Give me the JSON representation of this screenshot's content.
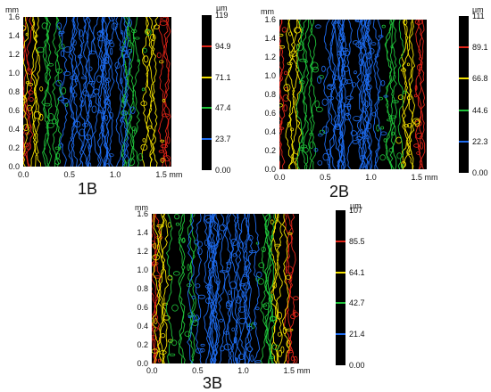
{
  "figure": {
    "panels": [
      {
        "caption": "1B",
        "y_unit": "mm",
        "y_ticks": [
          "1.6",
          "1.4",
          "1.2",
          "1.0",
          "0.8",
          "0.6",
          "0.4",
          "0.2",
          "0.0"
        ],
        "x_ticks": [
          "0.0",
          "0.5",
          "1.0",
          "1.5 mm"
        ],
        "colorbar_unit": "µm",
        "colorbar_ticks": [
          "119",
          "94.9",
          "71.1",
          "47.4",
          "23.7",
          "0.00"
        ]
      },
      {
        "caption": "2B",
        "y_unit": "mm",
        "y_ticks": [
          "1.6",
          "1.4",
          "1.2",
          "1.0",
          "0.8",
          "0.6",
          "0.4",
          "0.2",
          "0.0"
        ],
        "x_ticks": [
          "0.0",
          "0.5",
          "1.0",
          "1.5 mm"
        ],
        "colorbar_unit": "µm",
        "colorbar_ticks": [
          "111",
          "89.1",
          "66.8",
          "44.6",
          "22.3",
          "0.00"
        ]
      },
      {
        "caption": "3B",
        "y_unit": "mm",
        "y_ticks": [
          "1.6",
          "1.4",
          "1.2",
          "1.0",
          "0.8",
          "0.6",
          "0.4",
          "0.2",
          "0.0"
        ],
        "x_ticks": [
          "0.0",
          "0.5",
          "1.0",
          "1.5 mm"
        ],
        "colorbar_unit": "µm",
        "colorbar_ticks": [
          "107",
          "85.5",
          "64.1",
          "42.7",
          "21.4",
          "0.00"
        ]
      }
    ],
    "contour_colors": {
      "red": "#e02418",
      "yellow": "#f2e000",
      "green": "#1fc33a",
      "blue": "#1e6cf0"
    }
  }
}
